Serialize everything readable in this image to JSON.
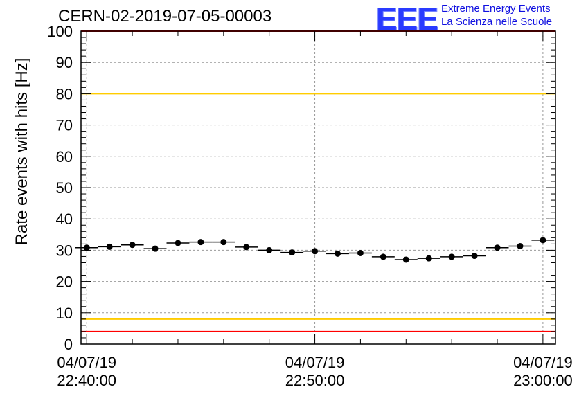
{
  "title": "CERN-02-2019-07-05-00003",
  "logo": {
    "mark": "EEE",
    "line1": "Extreme Energy Events",
    "line2": "La Scienza nelle Scuole"
  },
  "chart_data": {
    "type": "scatter",
    "ylabel": "Rate events with hits [Hz]",
    "xlabel": "",
    "ylim": [
      0,
      100
    ],
    "yticks": [
      0,
      10,
      20,
      30,
      40,
      50,
      60,
      70,
      80,
      90,
      100
    ],
    "xticks": [
      {
        "date": "04/07/19",
        "time": "22:40:00",
        "minutes": 0
      },
      {
        "date": "04/07/19",
        "time": "22:50:00",
        "minutes": 10
      },
      {
        "date": "04/07/19",
        "time": "23:00:00",
        "minutes": 20
      }
    ],
    "grid": true,
    "reference_lines": [
      {
        "y": 100,
        "color": "#ff0000"
      },
      {
        "y": 80,
        "color": "#ffcc00"
      },
      {
        "y": 8,
        "color": "#ffcc00"
      },
      {
        "y": 4,
        "color": "#ff0000"
      }
    ],
    "series": [
      {
        "x": [
          0,
          1,
          2,
          3,
          4,
          5,
          6,
          7,
          8,
          9,
          10,
          11,
          12,
          13,
          14,
          15,
          16,
          17,
          18,
          19,
          20
        ],
        "values": [
          30.8,
          31.1,
          31.7,
          30.5,
          32.3,
          32.6,
          32.6,
          31.0,
          30.0,
          29.3,
          29.7,
          28.9,
          29.1,
          27.9,
          27.0,
          27.4,
          27.9,
          28.2,
          30.8,
          31.3,
          33.2
        ],
        "bin_width": 1,
        "color": "#000000"
      }
    ]
  }
}
